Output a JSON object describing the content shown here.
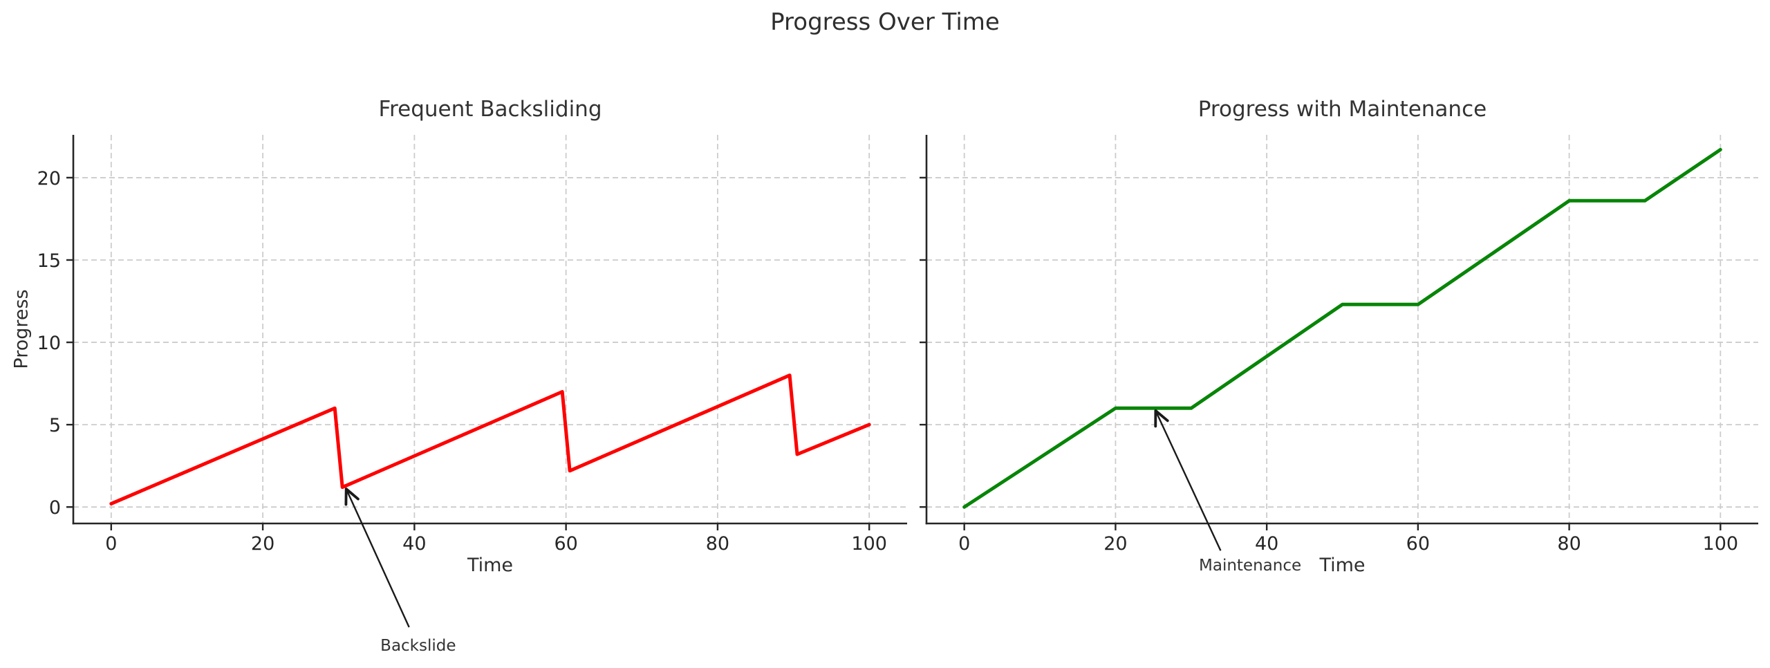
{
  "figure": {
    "suptitle": "Progress Over Time",
    "background_color": "#ffffff",
    "text_color": "#2e2e2e",
    "grid_color": "#cccccc",
    "spine_color": "#262626",
    "annotation_arrow_color": "#1a1a1a"
  },
  "chart_data": [
    {
      "type": "line",
      "title": "Frequent Backsliding",
      "xlabel": "Time",
      "ylabel": "Progress",
      "xlim": [
        -5,
        105
      ],
      "ylim": [
        -1,
        22.6
      ],
      "xticks": [
        0,
        20,
        40,
        60,
        80,
        100
      ],
      "yticks": [
        0,
        5,
        10,
        15,
        20
      ],
      "show_ytick_labels": true,
      "grid": true,
      "grid_style": "dashed",
      "legend": "none",
      "line_color": "#ff0000",
      "series": [
        {
          "name": "progress",
          "points": [
            [
              0,
              0.2
            ],
            [
              29.5,
              6.0
            ],
            [
              30.5,
              1.2
            ],
            [
              59.5,
              7.0
            ],
            [
              60.5,
              2.2
            ],
            [
              89.5,
              8.0
            ],
            [
              90.5,
              3.2
            ],
            [
              100,
              5.0
            ]
          ]
        }
      ],
      "annotation": {
        "label": "Backslide",
        "tip_xy": [
          31,
          1.1
        ],
        "arrow_start_xy": [
          39.3,
          -7.3
        ],
        "text_xy": [
          40.5,
          -8.45
        ]
      }
    },
    {
      "type": "line",
      "title": "Progress with Maintenance",
      "xlabel": "Time",
      "ylabel": "",
      "xlim": [
        -5,
        105
      ],
      "ylim": [
        -1,
        22.6
      ],
      "xticks": [
        0,
        20,
        40,
        60,
        80,
        100
      ],
      "yticks": [
        0,
        5,
        10,
        15,
        20
      ],
      "show_ytick_labels": false,
      "grid": true,
      "grid_style": "dashed",
      "legend": "none",
      "line_color": "#078507",
      "series": [
        {
          "name": "progress",
          "points": [
            [
              0,
              0.0
            ],
            [
              20,
              6.0
            ],
            [
              30,
              6.0
            ],
            [
              50,
              12.3
            ],
            [
              60,
              12.3
            ],
            [
              80,
              18.6
            ],
            [
              90,
              18.6
            ],
            [
              100,
              21.7
            ]
          ]
        }
      ],
      "annotation": {
        "label": "Maintenance",
        "tip_xy": [
          25.3,
          5.85
        ],
        "arrow_start_xy": [
          33.9,
          -2.65
        ],
        "text_xy": [
          37.8,
          -3.55
        ]
      }
    }
  ]
}
